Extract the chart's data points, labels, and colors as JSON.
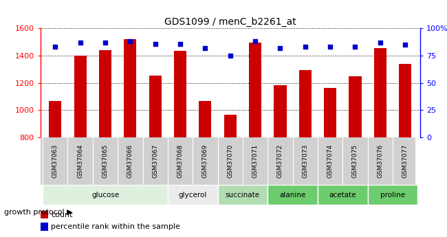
{
  "title": "GDS1099 / menC_b2261_at",
  "samples": [
    "GSM37063",
    "GSM37064",
    "GSM37065",
    "GSM37066",
    "GSM37067",
    "GSM37068",
    "GSM37069",
    "GSM37070",
    "GSM37071",
    "GSM37072",
    "GSM37073",
    "GSM37074",
    "GSM37075",
    "GSM37076",
    "GSM37077"
  ],
  "counts": [
    1068,
    1400,
    1440,
    1520,
    1255,
    1435,
    1068,
    965,
    1495,
    1185,
    1295,
    1165,
    1248,
    1455,
    1340
  ],
  "percentiles": [
    83,
    87,
    87,
    88,
    86,
    86,
    82,
    75,
    88,
    82,
    83,
    83,
    83,
    87,
    85
  ],
  "groups": [
    {
      "label": "glucose",
      "indices": [
        0,
        1,
        2,
        3,
        4
      ],
      "color": "#dff0de"
    },
    {
      "label": "glycerol",
      "indices": [
        5,
        6
      ],
      "color": "#ebebeb"
    },
    {
      "label": "succinate",
      "indices": [
        7,
        8
      ],
      "color": "#b2ddb2"
    },
    {
      "label": "alanine",
      "indices": [
        9,
        10
      ],
      "color": "#6dcc6d"
    },
    {
      "label": "acetate",
      "indices": [
        11,
        12
      ],
      "color": "#6dcc6d"
    },
    {
      "label": "proline",
      "indices": [
        13,
        14
      ],
      "color": "#6dcc6d"
    }
  ],
  "ylim_left": [
    800,
    1600
  ],
  "ylim_right": [
    0,
    100
  ],
  "yticks_left": [
    800,
    1000,
    1200,
    1400,
    1600
  ],
  "yticks_right": [
    0,
    25,
    50,
    75,
    100
  ],
  "yticklabels_right": [
    "0",
    "25",
    "50",
    "75",
    "100%"
  ],
  "bar_color": "#cc0000",
  "dot_color": "#0000cc",
  "bar_width": 0.5,
  "legend_count_label": "count",
  "legend_pct_label": "percentile rank within the sample",
  "growth_protocol_label": "growth protocol",
  "sample_bg_color": "#d0d0d0"
}
